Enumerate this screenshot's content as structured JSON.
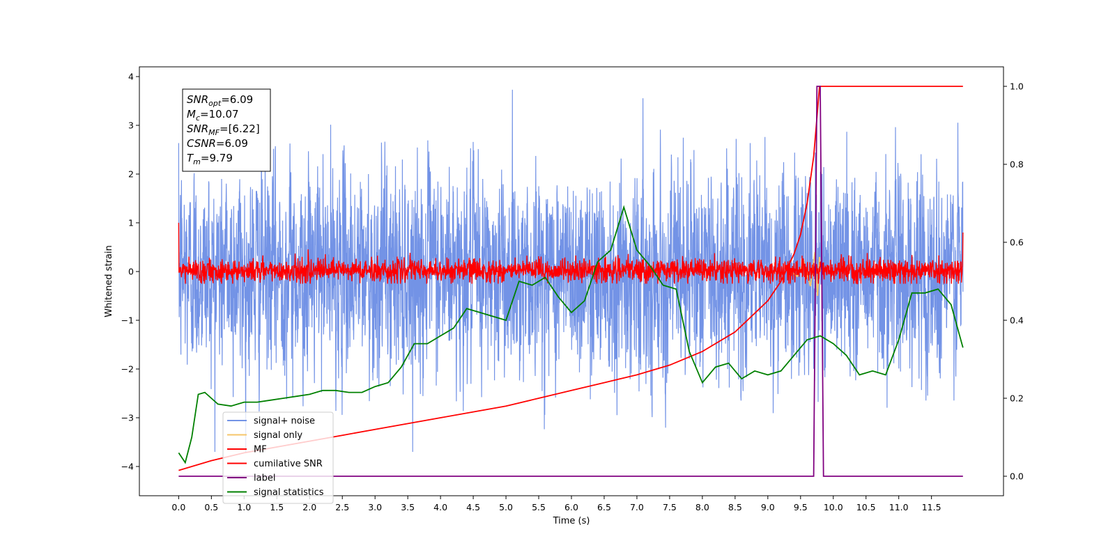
{
  "chart_data": {
    "type": "line",
    "xlabel": "Time (s)",
    "ylabel": "Whitened strain",
    "xlim": [
      -0.6,
      12.6
    ],
    "ylim": [
      -4.6,
      4.2
    ],
    "ylim_right": [
      -0.05,
      1.05
    ],
    "x_ticks": [
      0.0,
      0.5,
      1.0,
      1.5,
      2.0,
      2.5,
      3.0,
      3.5,
      4.0,
      4.5,
      5.0,
      5.5,
      6.0,
      6.5,
      7.0,
      7.5,
      8.0,
      8.5,
      9.0,
      9.5,
      10.0,
      10.5,
      11.0,
      11.5
    ],
    "x_tick_labels": [
      "0.0",
      "0.5",
      "1.0",
      "1.5",
      "2.0",
      "2.5",
      "3.0",
      "3.5",
      "4.0",
      "4.5",
      "5.0",
      "5.5",
      "6.0",
      "6.5",
      "7.0",
      "7.5",
      "8.0",
      "8.5",
      "9.0",
      "9.5",
      "10.0",
      "10.5",
      "11.0",
      "11.5"
    ],
    "y_ticks": [
      4,
      3,
      2,
      1,
      0,
      -1,
      -2,
      -3,
      -4
    ],
    "y_tick_labels": [
      "4",
      "3",
      "2",
      "1",
      "0",
      "−1",
      "−2",
      "−3",
      "−4"
    ],
    "y_right_ticks": [
      1.0,
      0.8,
      0.6,
      0.4,
      0.2,
      0.0
    ],
    "y_right_tick_labels": [
      "1.0",
      "0.8",
      "0.6",
      "0.4",
      "0.2",
      "0.0"
    ],
    "grid": false,
    "legend_position": "bottom-left",
    "annotation": [
      {
        "base": "SNR",
        "sub": "opt",
        "value": "=6.09"
      },
      {
        "base": "M",
        "sub": "c",
        "value": "=10.07"
      },
      {
        "base": "SNR",
        "sub": "MF",
        "value": "=[6.22]"
      },
      {
        "base": "CSNR",
        "sub": "",
        "value": "=6.09"
      },
      {
        "base": "T",
        "sub": "m",
        "value": "=9.79"
      }
    ],
    "series": [
      {
        "name": "signal+ noise",
        "axis": "left",
        "color": "#7393e6",
        "x_range": [
          0,
          11.98
        ],
        "amplitude_range": [
          -3.7,
          3.8
        ],
        "description_values": {
          "typical_low": -2.0,
          "typical_high": 2.2
        }
      },
      {
        "name": "signal only",
        "axis": "left",
        "color": "#f5c56a",
        "x": [
          9.3,
          9.45,
          9.55,
          9.65,
          9.72,
          9.76,
          9.79,
          9.8
        ],
        "y": [
          0.05,
          -0.1,
          0.2,
          -0.3,
          0.4,
          -0.5,
          0.3,
          0.0
        ]
      },
      {
        "name": "MF",
        "axis": "left",
        "color": "#ff0000",
        "x_range": [
          0,
          11.98
        ],
        "amplitude_range": [
          -0.25,
          0.55
        ],
        "start_value": 1.0,
        "end_value": 0.8
      },
      {
        "name": "cumilative SNR",
        "axis": "right",
        "color": "#ff0000",
        "x": [
          0,
          0.5,
          1.0,
          1.5,
          2.0,
          2.5,
          3.0,
          3.5,
          4.0,
          4.5,
          5.0,
          5.5,
          6.0,
          6.5,
          7.0,
          7.5,
          8.0,
          8.5,
          9.0,
          9.2,
          9.4,
          9.5,
          9.6,
          9.7,
          9.75,
          9.79,
          9.8,
          10.0,
          11.0,
          11.98
        ],
        "y": [
          0.015,
          0.04,
          0.06,
          0.075,
          0.09,
          0.105,
          0.12,
          0.135,
          0.15,
          0.165,
          0.18,
          0.2,
          0.22,
          0.24,
          0.26,
          0.285,
          0.32,
          0.37,
          0.45,
          0.5,
          0.57,
          0.62,
          0.7,
          0.82,
          0.92,
          1.0,
          1.0,
          1.0,
          1.0,
          1.0
        ]
      },
      {
        "name": "label",
        "axis": "right",
        "color": "#800080",
        "x": [
          0,
          9.7,
          9.75,
          9.8,
          9.85,
          11.98
        ],
        "y": [
          0,
          0,
          1,
          1,
          0,
          0
        ]
      },
      {
        "name": "signal statistics",
        "axis": "right",
        "color": "#008000",
        "x": [
          0,
          0.1,
          0.2,
          0.3,
          0.4,
          0.6,
          0.8,
          1.0,
          1.2,
          1.4,
          1.6,
          1.8,
          2.0,
          2.2,
          2.4,
          2.6,
          2.8,
          3.0,
          3.2,
          3.4,
          3.6,
          3.8,
          4.0,
          4.2,
          4.4,
          4.6,
          4.8,
          5.0,
          5.2,
          5.4,
          5.6,
          5.8,
          6.0,
          6.2,
          6.4,
          6.6,
          6.8,
          7.0,
          7.2,
          7.4,
          7.6,
          7.8,
          8.0,
          8.2,
          8.4,
          8.6,
          8.8,
          9.0,
          9.2,
          9.4,
          9.6,
          9.8,
          10.0,
          10.2,
          10.4,
          10.6,
          10.8,
          11.0,
          11.2,
          11.4,
          11.6,
          11.8,
          11.98
        ],
        "y": [
          0.06,
          0.035,
          0.1,
          0.21,
          0.215,
          0.185,
          0.18,
          0.19,
          0.19,
          0.195,
          0.2,
          0.205,
          0.21,
          0.22,
          0.22,
          0.215,
          0.215,
          0.23,
          0.24,
          0.28,
          0.34,
          0.34,
          0.36,
          0.38,
          0.43,
          0.42,
          0.41,
          0.4,
          0.5,
          0.49,
          0.51,
          0.46,
          0.42,
          0.45,
          0.55,
          0.58,
          0.69,
          0.58,
          0.54,
          0.49,
          0.48,
          0.32,
          0.24,
          0.28,
          0.29,
          0.25,
          0.27,
          0.26,
          0.27,
          0.31,
          0.35,
          0.36,
          0.34,
          0.31,
          0.26,
          0.27,
          0.26,
          0.35,
          0.47,
          0.47,
          0.48,
          0.44,
          0.33
        ]
      }
    ]
  }
}
